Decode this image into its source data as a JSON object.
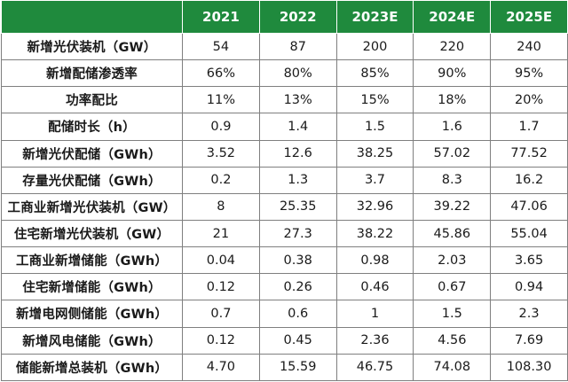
{
  "table": {
    "corner_label": "",
    "columns": [
      "2021",
      "2022",
      "2023E",
      "2024E",
      "2025E"
    ],
    "rows": [
      {
        "label": "新增光伏装机（GW）",
        "values": [
          "54",
          "87",
          "200",
          "220",
          "240"
        ]
      },
      {
        "label": "新增配储渗透率",
        "values": [
          "66%",
          "80%",
          "85%",
          "90%",
          "95%"
        ]
      },
      {
        "label": "功率配比",
        "values": [
          "11%",
          "13%",
          "15%",
          "18%",
          "20%"
        ]
      },
      {
        "label": "配储时长（h）",
        "values": [
          "0.9",
          "1.4",
          "1.5",
          "1.6",
          "1.7"
        ]
      },
      {
        "label": "新增光伏配储（GWh）",
        "values": [
          "3.52",
          "12.6",
          "38.25",
          "57.02",
          "77.52"
        ]
      },
      {
        "label": "存量光伏配储（GWh）",
        "values": [
          "0.2",
          "1.3",
          "3.7",
          "8.3",
          "16.2"
        ]
      },
      {
        "label": "工商业新增光伏装机（GW）",
        "values": [
          "8",
          "25.35",
          "32.96",
          "39.22",
          "47.06"
        ]
      },
      {
        "label": "住宅新增光伏装机（GW）",
        "values": [
          "21",
          "27.3",
          "38.22",
          "45.86",
          "55.04"
        ]
      },
      {
        "label": "工商业新增储能（GWh）",
        "values": [
          "0.04",
          "0.38",
          "0.98",
          "2.03",
          "3.65"
        ]
      },
      {
        "label": "住宅新增储能（GWh）",
        "values": [
          "0.12",
          "0.26",
          "0.46",
          "0.67",
          "0.94"
        ]
      },
      {
        "label": "新增电网侧储能（GWh）",
        "values": [
          "0.7",
          "0.6",
          "1",
          "1.5",
          "2.3"
        ]
      },
      {
        "label": "新增风电储能（GWh）",
        "values": [
          "0.12",
          "0.45",
          "2.36",
          "4.56",
          "7.69"
        ]
      },
      {
        "label": "储能新增总装机（GWh）",
        "values": [
          "4.70",
          "15.59",
          "46.75",
          "74.08",
          "108.30"
        ]
      }
    ]
  },
  "colors": {
    "header_bg": "#1f8a3d",
    "header_text": "#ffffff",
    "grid_line": "#7f7f7f",
    "body_text": "#1a1a1a"
  }
}
